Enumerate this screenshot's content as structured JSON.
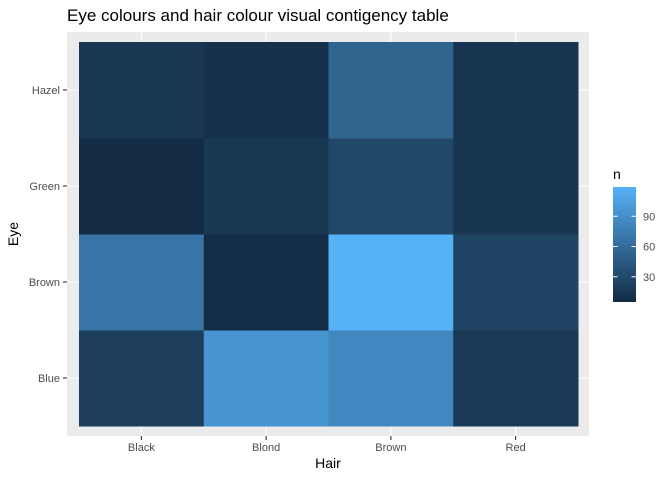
{
  "chart_data": {
    "type": "heatmap",
    "title": "Eye colours and hair colour visual contigency table",
    "xlabel": "Hair",
    "ylabel": "Eye",
    "x_categories": [
      "Black",
      "Blond",
      "Brown",
      "Red"
    ],
    "y_categories": [
      "Blue",
      "Brown",
      "Green",
      "Hazel"
    ],
    "values": [
      [
        20,
        94,
        84,
        17
      ],
      [
        68,
        7,
        119,
        26
      ],
      [
        5,
        16,
        29,
        14
      ],
      [
        15,
        10,
        54,
        14
      ]
    ],
    "legend": {
      "title": "n",
      "ticks": [
        30,
        60,
        90
      ],
      "range": [
        5,
        119
      ],
      "low_color": "#132B43",
      "high_color": "#56B1F7"
    },
    "grid": true,
    "legend_position": "right"
  }
}
